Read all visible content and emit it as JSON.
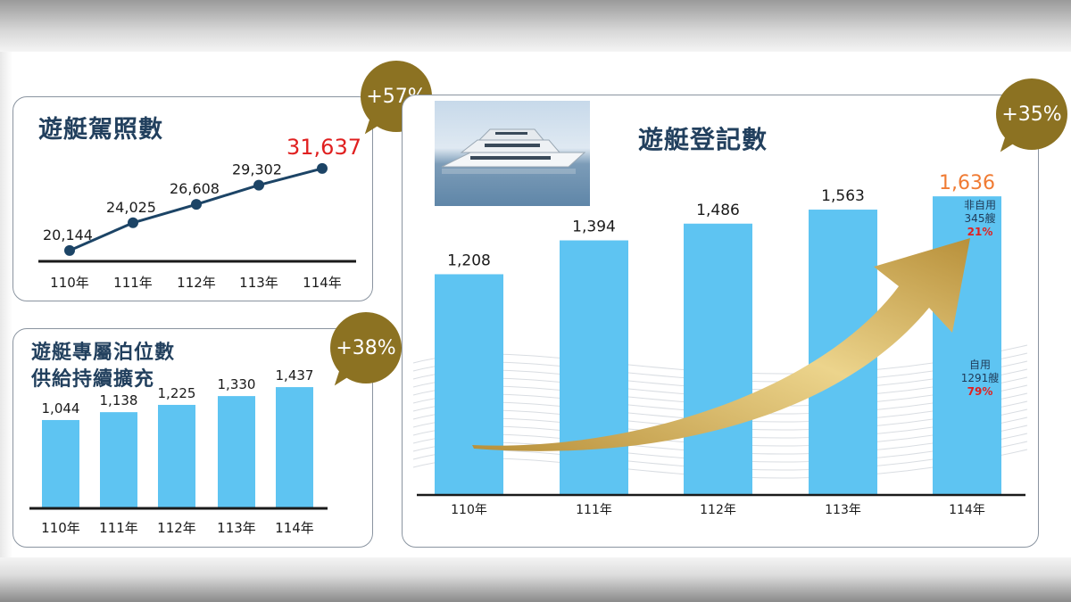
{
  "colors": {
    "bar": "#5ec4f2",
    "line": "#1c4466",
    "accent_red": "#e02020",
    "accent_orange": "#f07b33",
    "bubble": "#8c7222",
    "arrow": "#c9a548"
  },
  "license": {
    "title": "遊艇駕照數",
    "badge": "+57%"
  },
  "berth": {
    "title_line1": "遊艇專屬泊位數",
    "title_line2": "供給持續擴充",
    "badge": "+38%"
  },
  "registration": {
    "title": "遊艇登記數",
    "badge": "+35%",
    "non_self_label": "非自用",
    "non_self_count": "345艘",
    "non_self_pct": "21%",
    "self_label": "自用",
    "self_count": "1291艘",
    "self_pct": "79%"
  },
  "chart_data": [
    {
      "type": "line",
      "title": "遊艇駕照數",
      "categories": [
        "110年",
        "111年",
        "112年",
        "113年",
        "114年"
      ],
      "values": [
        20144,
        24025,
        26608,
        29302,
        31637
      ],
      "labels": [
        "20,144",
        "24,025",
        "26,608",
        "29,302",
        "31,637"
      ],
      "ylim": [
        16000,
        36000
      ]
    },
    {
      "type": "bar",
      "title": "遊艇專屬泊位數",
      "categories": [
        "110年",
        "111年",
        "112年",
        "113年",
        "114年"
      ],
      "values": [
        1044,
        1138,
        1225,
        1330,
        1437
      ],
      "labels": [
        "1,044",
        "1,138",
        "1,225",
        "1,330",
        "1,437"
      ],
      "ylim": [
        0,
        1640
      ]
    },
    {
      "type": "bar",
      "title": "遊艇登記數",
      "categories": [
        "110年",
        "111年",
        "112年",
        "113年",
        "114年"
      ],
      "values": [
        1208,
        1394,
        1486,
        1563,
        1636
      ],
      "labels": [
        "1,208",
        "1,394",
        "1,486",
        "1,563",
        "1,636"
      ],
      "ylim": [
        0,
        1720
      ]
    }
  ]
}
